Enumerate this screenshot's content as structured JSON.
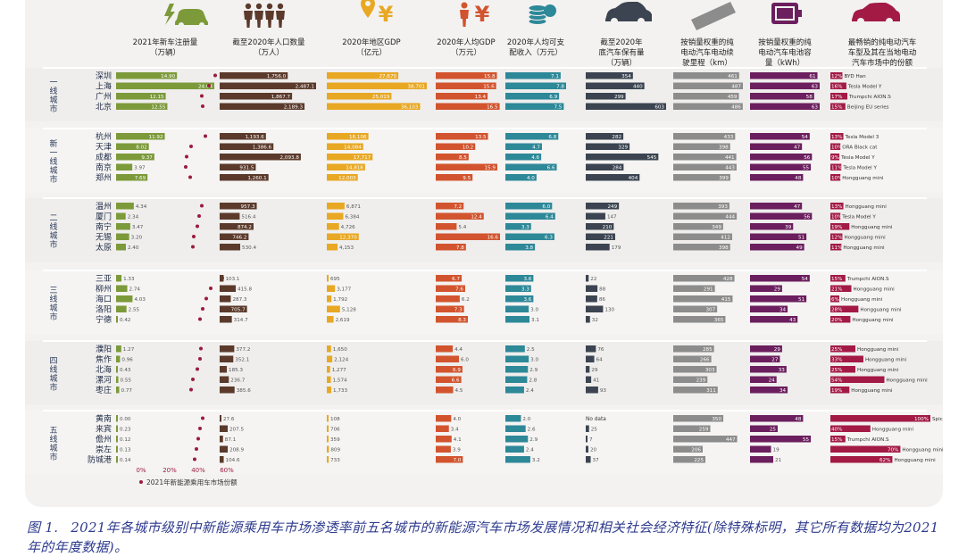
{
  "chart_data": {
    "type": "table",
    "colors": {
      "registrations": "#7c9a3a",
      "share_dot": "#9b1c3c",
      "population": "#5b3a2b",
      "gdp": "#e8a823",
      "gdp_per_capita": "#d2542e",
      "disposable_income": "#2d8898",
      "ownership": "#3b4450",
      "range": "#8c8c8c",
      "battery": "#6b1f5e",
      "bestseller": "#a31a45"
    },
    "icons": [
      "car-charging-icon",
      "people-icon",
      "location-yuan-icon",
      "person-yuan-icon",
      "coin-stack-icon",
      "car-icon",
      "ruler-icon",
      "battery-icon",
      "red-car-icon"
    ],
    "headers": [
      "2021年新车注册量\n（万辆）",
      "截至2020年人口数量\n（万人）",
      "2020年地区GDP\n（亿元）",
      "2020年人均GDP\n（万元）",
      "2020年人均可支\n配收入（万元）",
      "截至2020年\n底汽车保有量\n（万辆）",
      "按销量权重的纯\n电动汽车电动续\n驶里程（km）",
      "按销量权重的纯\n电动汽车电池容\n量（kWh）",
      "最畅销的纯电动汽车\n车型及其在当地电动\n汽车市场中的份额"
    ],
    "legend": "2021年新能源乘用车市场份额",
    "share_axis": {
      "ticks": [
        "0%",
        "20%",
        "40%",
        "60%"
      ],
      "max": 60
    },
    "tiers": [
      {
        "label": "一线城市",
        "cities": [
          {
            "name": "深圳",
            "reg": "14.90",
            "reg_v": 14.9,
            "share": 47,
            "pop": "1,756.0",
            "pop_v": 1756.0,
            "gdp": "27,670",
            "gdp_v": 27670,
            "gdppc": "15.8",
            "gdppc_v": 15.8,
            "inc": "7.1",
            "inc_v": 7.1,
            "own": "354",
            "own_v": 354,
            "range": "461",
            "range_v": 461,
            "bat": "61",
            "bat_v": 61,
            "best_pct": "12%",
            "best_model": "BYD Han",
            "best_v": 12
          },
          {
            "name": "上海",
            "reg": "24.04",
            "reg_v": 24.04,
            "share": 40,
            "pop": "2,487.1",
            "pop_v": 2487.1,
            "gdp": "38,701",
            "gdp_v": 38701,
            "gdppc": "15.6",
            "gdppc_v": 15.6,
            "inc": "7.8",
            "inc_v": 7.8,
            "own": "440",
            "own_v": 440,
            "range": "487",
            "range_v": 487,
            "bat": "63",
            "bat_v": 63,
            "best_pct": "16%",
            "best_model": "Tesla Model Y",
            "best_v": 16
          },
          {
            "name": "广州",
            "reg": "12.15",
            "reg_v": 12.15,
            "share": 32,
            "pop": "1,867.7",
            "pop_v": 1867.7,
            "gdp": "25,019",
            "gdp_v": 25019,
            "gdppc": "13.4",
            "gdppc_v": 13.4,
            "inc": "6.9",
            "inc_v": 6.9,
            "own": "299",
            "own_v": 299,
            "range": "459",
            "range_v": 459,
            "bat": "58",
            "bat_v": 58,
            "best_pct": "17%",
            "best_model": "Trumpchi AION.S",
            "best_v": 17
          },
          {
            "name": "北京",
            "reg": "12.55",
            "reg_v": 12.55,
            "share": 33,
            "pop": "2,189.3",
            "pop_v": 2189.3,
            "gdp": "36,103",
            "gdp_v": 36103,
            "gdppc": "16.5",
            "gdppc_v": 16.5,
            "inc": "7.5",
            "inc_v": 7.5,
            "own": "603",
            "own_v": 603,
            "range": "486",
            "range_v": 486,
            "bat": "63",
            "bat_v": 63,
            "best_pct": "15%",
            "best_model": "Beijing EU series",
            "best_v": 15
          }
        ]
      },
      {
        "label": "新一线城市",
        "cities": [
          {
            "name": "杭州",
            "reg": "11.92",
            "reg_v": 11.92,
            "share": 36,
            "pop": "1,193.6",
            "pop_v": 1193.6,
            "gdp": "16,106",
            "gdp_v": 16106,
            "gdppc": "13.5",
            "gdppc_v": 13.5,
            "inc": "6.8",
            "inc_v": 6.8,
            "own": "282",
            "own_v": 282,
            "range": "433",
            "range_v": 433,
            "bat": "54",
            "bat_v": 54,
            "best_pct": "13%",
            "best_model": "Tesla Model 3",
            "best_v": 13
          },
          {
            "name": "天津",
            "reg": "8.02",
            "reg_v": 8.02,
            "share": 20,
            "pop": "1,386.6",
            "pop_v": 1386.6,
            "gdp": "14,084",
            "gdp_v": 14084,
            "gdppc": "10.2",
            "gdppc_v": 10.2,
            "inc": "4.7",
            "inc_v": 4.7,
            "own": "329",
            "own_v": 329,
            "range": "398",
            "range_v": 398,
            "bat": "47",
            "bat_v": 47,
            "best_pct": "10%",
            "best_model": "ORA Black cat",
            "best_v": 10
          },
          {
            "name": "成都",
            "reg": "9.37",
            "reg_v": 9.37,
            "share": 15,
            "pop": "2,093.8",
            "pop_v": 2093.8,
            "gdp": "17,717",
            "gdp_v": 17717,
            "gdppc": "8.5",
            "gdppc_v": 8.5,
            "inc": "4.6",
            "inc_v": 4.6,
            "own": "545",
            "own_v": 545,
            "range": "441",
            "range_v": 441,
            "bat": "56",
            "bat_v": 56,
            "best_pct": "9%",
            "best_model": "Tesla Model Y",
            "best_v": 9
          },
          {
            "name": "南京",
            "reg": "3.97",
            "reg_v": 3.97,
            "share": 14,
            "pop": "931.5",
            "pop_v": 931.5,
            "gdp": "14,818",
            "gdp_v": 14818,
            "gdppc": "15.9",
            "gdppc_v": 15.9,
            "inc": "6.6",
            "inc_v": 6.6,
            "own": "284",
            "own_v": 284,
            "range": "443",
            "range_v": 443,
            "bat": "55",
            "bat_v": 55,
            "best_pct": "11%",
            "best_model": "Tesla Model Y",
            "best_v": 11
          },
          {
            "name": "郑州",
            "reg": "7.69",
            "reg_v": 7.69,
            "share": 19,
            "pop": "1,260.1",
            "pop_v": 1260.1,
            "gdp": "12,003",
            "gdp_v": 12003,
            "gdppc": "9.5",
            "gdppc_v": 9.5,
            "inc": "4.0",
            "inc_v": 4.0,
            "own": "404",
            "own_v": 404,
            "range": "399",
            "range_v": 399,
            "bat": "48",
            "bat_v": 48,
            "best_pct": "10%",
            "best_model": "Hongguang mini",
            "best_v": 10
          }
        ]
      },
      {
        "label": "二线城市",
        "cities": [
          {
            "name": "温州",
            "reg": "4.34",
            "reg_v": 4.34,
            "share": 32,
            "pop": "957.3",
            "pop_v": 957.3,
            "gdp": "6,871",
            "gdp_v": 6871,
            "gdppc": "7.2",
            "gdppc_v": 7.2,
            "inc": "6.0",
            "inc_v": 6.0,
            "own": "249",
            "own_v": 249,
            "range": "393",
            "range_v": 393,
            "bat": "47",
            "bat_v": 47,
            "best_pct": "13%",
            "best_model": "Hongguang mini",
            "best_v": 13
          },
          {
            "name": "厦门",
            "reg": "2.34",
            "reg_v": 2.34,
            "share": 29,
            "pop": "516.4",
            "pop_v": 516.4,
            "gdp": "6,384",
            "gdp_v": 6384,
            "gdppc": "12.4",
            "gdppc_v": 12.4,
            "inc": "6.4",
            "inc_v": 6.4,
            "own": "147",
            "own_v": 147,
            "range": "444",
            "range_v": 444,
            "bat": "56",
            "bat_v": 56,
            "best_pct": "10%",
            "best_model": "Tesla Model Y",
            "best_v": 10
          },
          {
            "name": "南宁",
            "reg": "3.47",
            "reg_v": 3.47,
            "share": 27,
            "pop": "874.2",
            "pop_v": 874.2,
            "gdp": "4,726",
            "gdp_v": 4726,
            "gdppc": "5.4",
            "gdppc_v": 5.4,
            "inc": "3.3",
            "inc_v": 3.3,
            "own": "210",
            "own_v": 210,
            "range": "349",
            "range_v": 349,
            "bat": "39",
            "bat_v": 39,
            "best_pct": "19%",
            "best_model": "Hongguang mini",
            "best_v": 19
          },
          {
            "name": "无锡",
            "reg": "3.20",
            "reg_v": 3.2,
            "share": 23,
            "pop": "746.2",
            "pop_v": 746.2,
            "gdp": "12,370",
            "gdp_v": 12370,
            "gdppc": "16.6",
            "gdppc_v": 16.6,
            "inc": "6.3",
            "inc_v": 6.3,
            "own": "221",
            "own_v": 221,
            "range": "412",
            "range_v": 412,
            "bat": "51",
            "bat_v": 51,
            "best_pct": "12%",
            "best_model": "Hongguang mini",
            "best_v": 12
          },
          {
            "name": "太原",
            "reg": "2.40",
            "reg_v": 2.4,
            "share": 22,
            "pop": "530.4",
            "pop_v": 530.4,
            "gdp": "4,153",
            "gdp_v": 4153,
            "gdppc": "7.8",
            "gdppc_v": 7.8,
            "inc": "3.8",
            "inc_v": 3.8,
            "own": "179",
            "own_v": 179,
            "range": "398",
            "range_v": 398,
            "bat": "49",
            "bat_v": 49,
            "best_pct": "11%",
            "best_model": "Hongguang mini",
            "best_v": 11
          }
        ]
      },
      {
        "label": "三线城市",
        "cities": [
          {
            "name": "三亚",
            "reg": "1.33",
            "reg_v": 1.33,
            "share": 55,
            "pop": "103.1",
            "pop_v": 103.1,
            "gdp": "695",
            "gdp_v": 695,
            "gdppc": "6.7",
            "gdppc_v": 6.7,
            "inc": "3.6",
            "inc_v": 3.6,
            "own": "22",
            "own_v": 22,
            "range": "428",
            "range_v": 428,
            "bat": "54",
            "bat_v": 54,
            "best_pct": "15%",
            "best_model": "Trumpchi AION.S",
            "best_v": 15
          },
          {
            "name": "柳州",
            "reg": "2.74",
            "reg_v": 2.74,
            "share": 42,
            "pop": "415.8",
            "pop_v": 415.8,
            "gdp": "3,177",
            "gdp_v": 3177,
            "gdppc": "7.6",
            "gdppc_v": 7.6,
            "inc": "3.3",
            "inc_v": 3.3,
            "own": "88",
            "own_v": 88,
            "range": "291",
            "range_v": 291,
            "bat": "29",
            "bat_v": 29,
            "best_pct": "21%",
            "best_model": "Hongguang mini",
            "best_v": 21
          },
          {
            "name": "海口",
            "reg": "4.03",
            "reg_v": 4.03,
            "share": 37,
            "pop": "287.3",
            "pop_v": 287.3,
            "gdp": "1,792",
            "gdp_v": 1792,
            "gdppc": "6.2",
            "gdppc_v": 6.2,
            "inc": "3.6",
            "inc_v": 3.6,
            "own": "86",
            "own_v": 86,
            "range": "415",
            "range_v": 415,
            "bat": "51",
            "bat_v": 51,
            "best_pct": "6%",
            "best_model": "Hongguang mini",
            "best_v": 6
          },
          {
            "name": "洛阳",
            "reg": "2.55",
            "reg_v": 2.55,
            "share": 33,
            "pop": "705.7",
            "pop_v": 705.7,
            "gdp": "5,128",
            "gdp_v": 5128,
            "gdppc": "7.3",
            "gdppc_v": 7.3,
            "inc": "3.0",
            "inc_v": 3.0,
            "own": "130",
            "own_v": 130,
            "range": "307",
            "range_v": 307,
            "bat": "34",
            "bat_v": 34,
            "best_pct": "28%",
            "best_model": "Hongguang mini",
            "best_v": 28
          },
          {
            "name": "宁德",
            "reg": "0.42",
            "reg_v": 0.42,
            "share": 30,
            "pop": "314.7",
            "pop_v": 314.7,
            "gdp": "2,619",
            "gdp_v": 2619,
            "gdppc": "8.3",
            "gdppc_v": 8.3,
            "inc": "3.1",
            "inc_v": 3.1,
            "own": "32",
            "own_v": 32,
            "range": "365",
            "range_v": 365,
            "bat": "43",
            "bat_v": 43,
            "best_pct": "20%",
            "best_model": "Hongguang mini",
            "best_v": 20
          }
        ]
      },
      {
        "label": "四线城市",
        "cities": [
          {
            "name": "濮阳",
            "reg": "1.27",
            "reg_v": 1.27,
            "share": 31,
            "pop": "377.2",
            "pop_v": 377.2,
            "gdp": "1,650",
            "gdp_v": 1650,
            "gdppc": "4.4",
            "gdppc_v": 4.4,
            "inc": "2.5",
            "inc_v": 2.5,
            "own": "76",
            "own_v": 76,
            "range": "285",
            "range_v": 285,
            "bat": "29",
            "bat_v": 29,
            "best_pct": "25%",
            "best_model": "Hongguang mini",
            "best_v": 25
          },
          {
            "name": "焦作",
            "reg": "0.96",
            "reg_v": 0.96,
            "share": 30,
            "pop": "352.1",
            "pop_v": 352.1,
            "gdp": "2,124",
            "gdp_v": 2124,
            "gdppc": "6.0",
            "gdppc_v": 6.0,
            "inc": "3.0",
            "inc_v": 3.0,
            "own": "64",
            "own_v": 64,
            "range": "266",
            "range_v": 266,
            "bat": "27",
            "bat_v": 27,
            "best_pct": "33%",
            "best_model": "Hongguang mini",
            "best_v": 33
          },
          {
            "name": "北海",
            "reg": "0.43",
            "reg_v": 0.43,
            "share": 27,
            "pop": "185.3",
            "pop_v": 185.3,
            "gdp": "1,277",
            "gdp_v": 1277,
            "gdppc": "6.9",
            "gdppc_v": 6.9,
            "inc": "2.9",
            "inc_v": 2.9,
            "own": "29",
            "own_v": 29,
            "range": "303",
            "range_v": 303,
            "bat": "33",
            "bat_v": 33,
            "best_pct": "25%",
            "best_model": "Hongguang mini",
            "best_v": 25
          },
          {
            "name": "漯河",
            "reg": "0.55",
            "reg_v": 0.55,
            "share": 22,
            "pop": "236.7",
            "pop_v": 236.7,
            "gdp": "1,574",
            "gdp_v": 1574,
            "gdppc": "6.6",
            "gdppc_v": 6.6,
            "inc": "2.8",
            "inc_v": 2.8,
            "own": "41",
            "own_v": 41,
            "range": "239",
            "range_v": 239,
            "bat": "24",
            "bat_v": 24,
            "best_pct": "54%",
            "best_model": "Hongguang mini",
            "best_v": 54
          },
          {
            "name": "枣庄",
            "reg": "0.77",
            "reg_v": 0.77,
            "share": 20,
            "pop": "385.6",
            "pop_v": 385.6,
            "gdp": "1,733",
            "gdp_v": 1733,
            "gdppc": "4.5",
            "gdppc_v": 4.5,
            "inc": "2.4",
            "inc_v": 2.4,
            "own": "93",
            "own_v": 93,
            "range": "311",
            "range_v": 311,
            "bat": "34",
            "bat_v": 34,
            "best_pct": "19%",
            "best_model": "Hongguang mini",
            "best_v": 19
          }
        ]
      },
      {
        "label": "五线城市",
        "cities": [
          {
            "name": "黄南",
            "reg": "0.00",
            "reg_v": 0.0,
            "share": 33,
            "pop": "27.6",
            "pop_v": 27.6,
            "gdp": "108",
            "gdp_v": 108,
            "gdppc": "4.0",
            "gdppc_v": 4.0,
            "inc": "2.0",
            "inc_v": 2.0,
            "own": "No data",
            "own_v": 0,
            "range": "350",
            "range_v": 350,
            "bat": "48",
            "bat_v": 48,
            "best_pct": "100%",
            "best_model": "Spica",
            "best_v": 100
          },
          {
            "name": "来宾",
            "reg": "0.23",
            "reg_v": 0.23,
            "share": 30,
            "pop": "207.5",
            "pop_v": 207.5,
            "gdp": "706",
            "gdp_v": 706,
            "gdppc": "3.4",
            "gdppc_v": 3.4,
            "inc": "2.6",
            "inc_v": 2.6,
            "own": "25",
            "own_v": 25,
            "range": "259",
            "range_v": 259,
            "bat": "25",
            "bat_v": 25,
            "best_pct": "40%",
            "best_model": "Hongguang mini",
            "best_v": 40
          },
          {
            "name": "儋州",
            "reg": "0.12",
            "reg_v": 0.12,
            "share": 28,
            "pop": "87.1",
            "pop_v": 87.1,
            "gdp": "359",
            "gdp_v": 359,
            "gdppc": "4.1",
            "gdppc_v": 4.1,
            "inc": "2.9",
            "inc_v": 2.9,
            "own": "7",
            "own_v": 7,
            "range": "447",
            "range_v": 447,
            "bat": "55",
            "bat_v": 55,
            "best_pct": "15%",
            "best_model": "Trumpchi AION.S",
            "best_v": 15
          },
          {
            "name": "崇左",
            "reg": "0.13",
            "reg_v": 0.13,
            "share": 26,
            "pop": "208.9",
            "pop_v": 208.9,
            "gdp": "809",
            "gdp_v": 809,
            "gdppc": "3.9",
            "gdppc_v": 3.9,
            "inc": "2.4",
            "inc_v": 2.4,
            "own": "20",
            "own_v": 20,
            "range": "206",
            "range_v": 206,
            "bat": "19",
            "bat_v": 19,
            "best_pct": "70%",
            "best_model": "Hongguang mini",
            "best_v": 70
          },
          {
            "name": "防城港",
            "reg": "0.14",
            "reg_v": 0.14,
            "share": 24,
            "pop": "104.6",
            "pop_v": 104.6,
            "gdp": "733",
            "gdp_v": 733,
            "gdppc": "7.0",
            "gdppc_v": 7.0,
            "inc": "3.2",
            "inc_v": 3.2,
            "own": "37",
            "own_v": 37,
            "range": "225",
            "range_v": 225,
            "bat": "21",
            "bat_v": 21,
            "best_pct": "62%",
            "best_model": "Hongguang mini",
            "best_v": 62
          }
        ]
      }
    ]
  },
  "caption": {
    "number": "图 1.",
    "text": "2021年各城市级别中新能源乘用车市场渗透率前五名城市的新能源汽车市场发展情况和相关社会经济特征(除特殊标明，其它所有数据均为2021年的年度数据)。"
  }
}
